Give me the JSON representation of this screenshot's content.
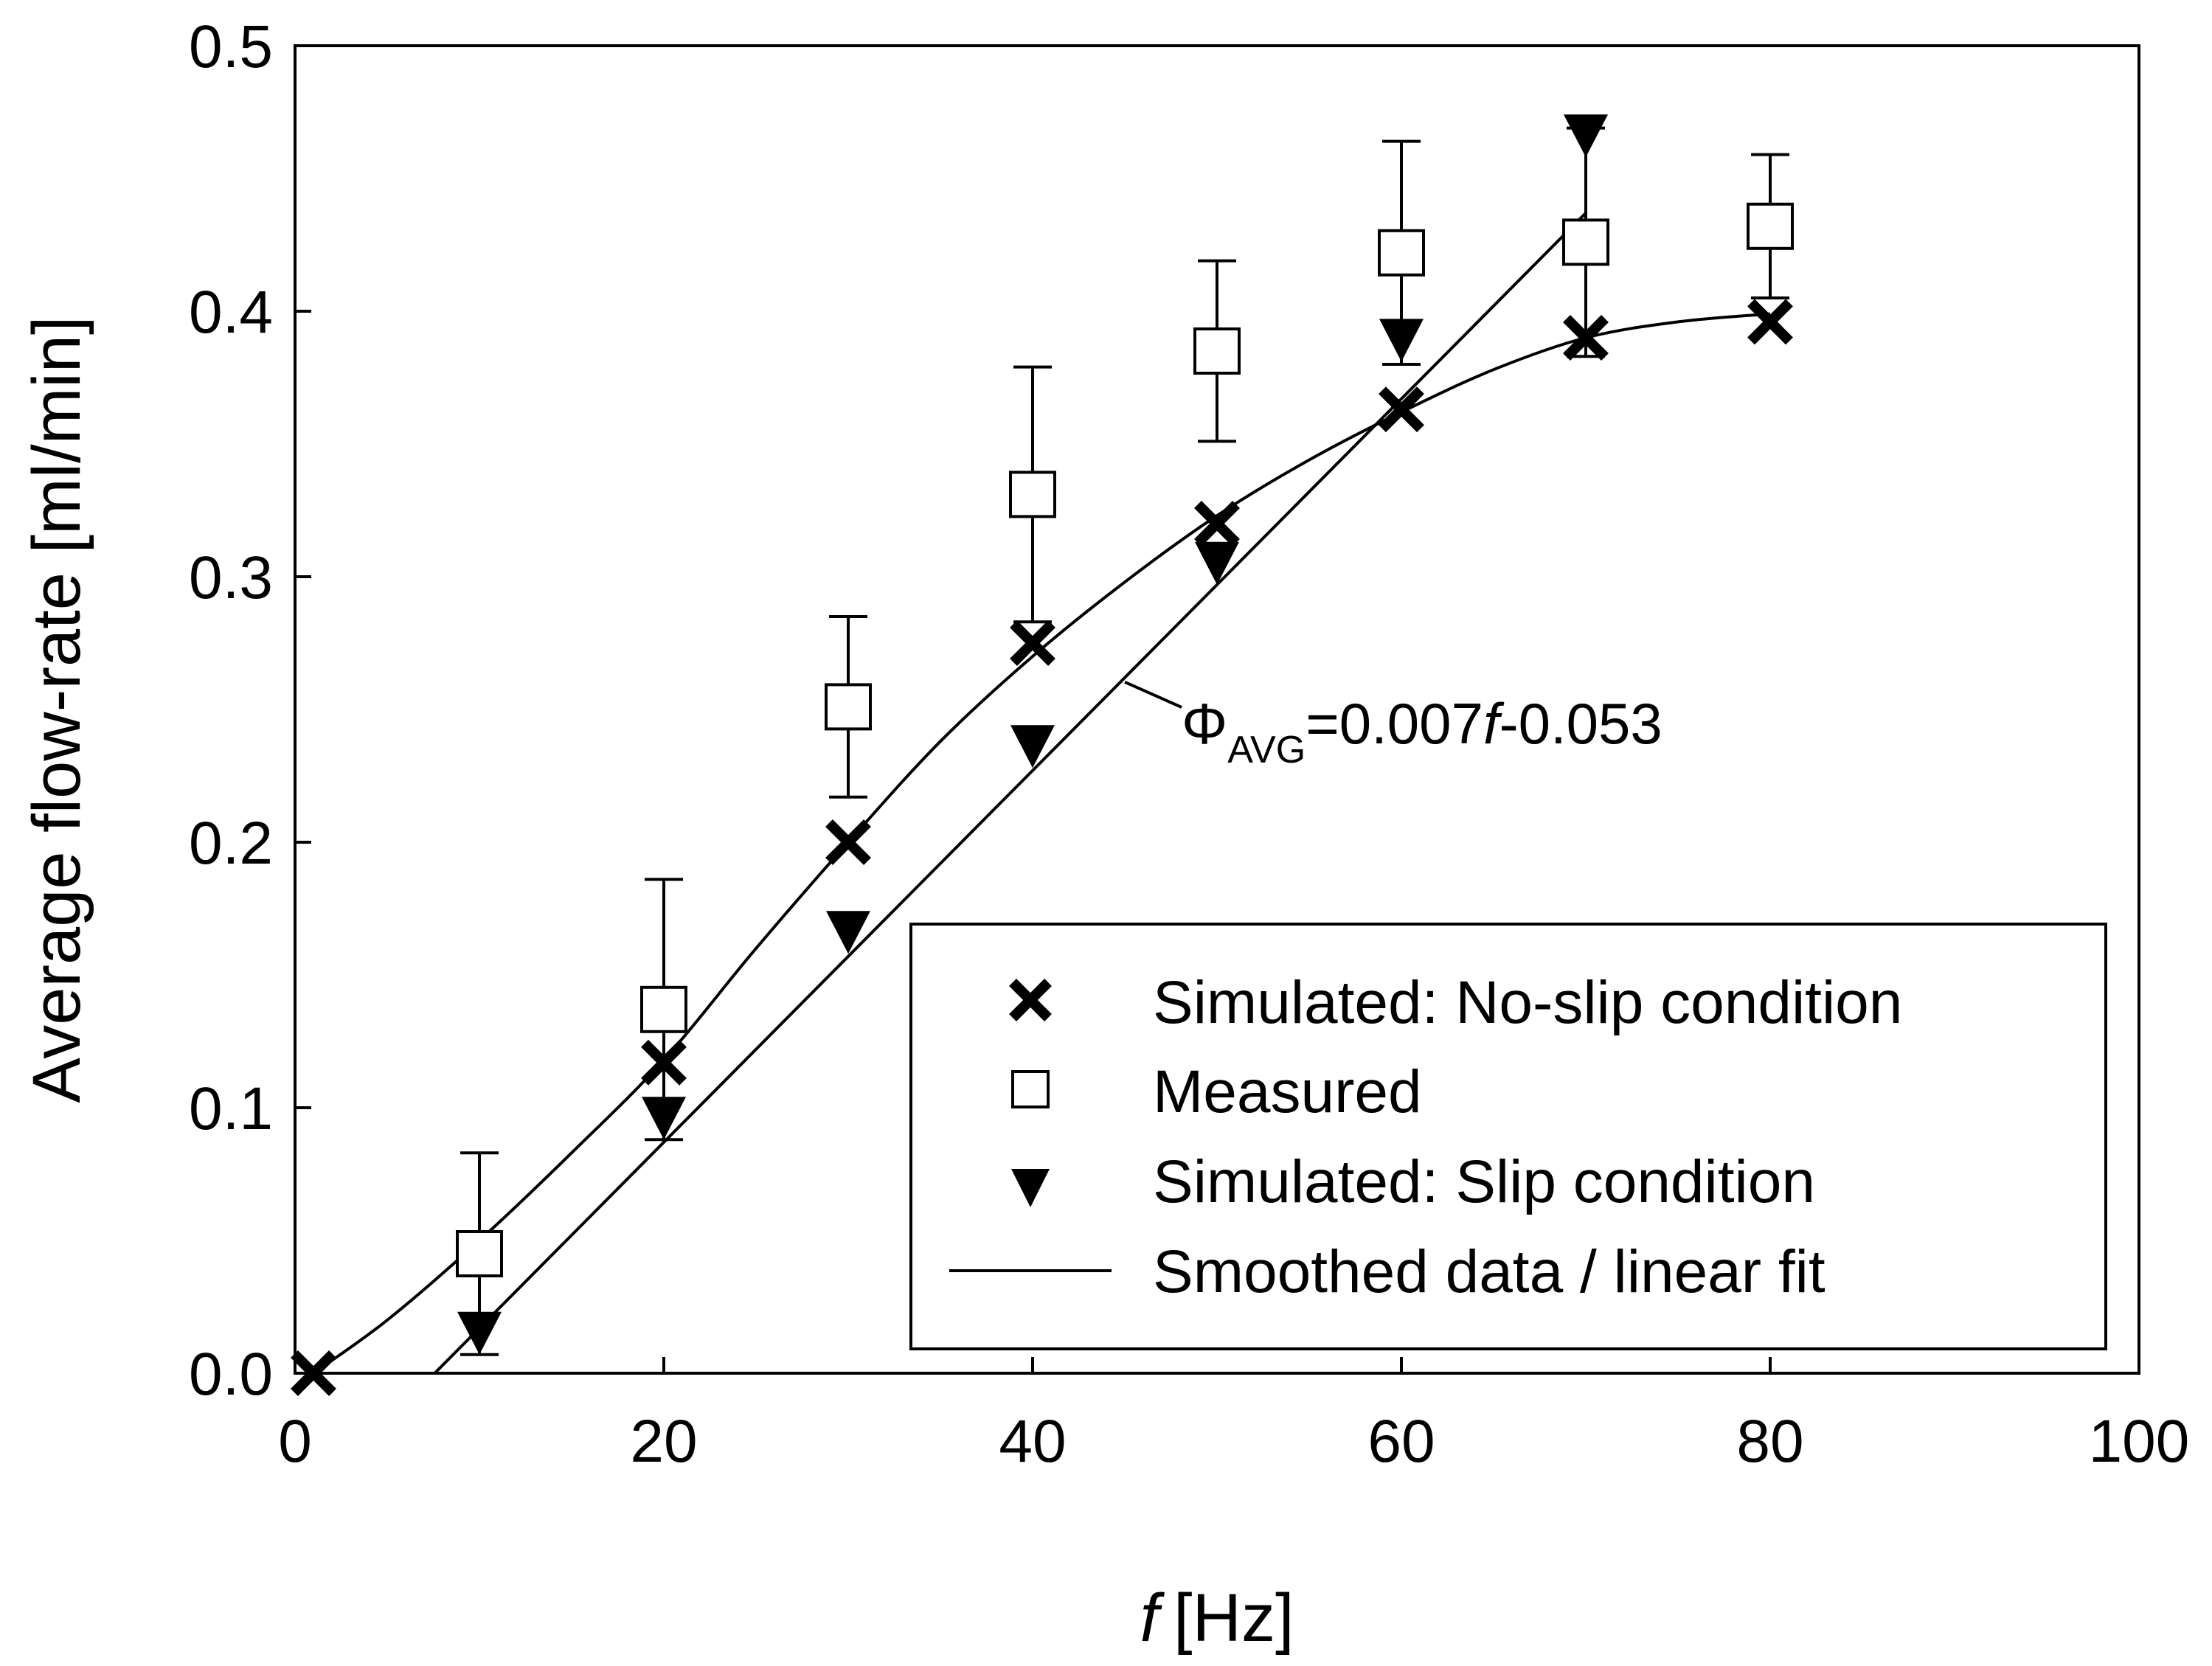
{
  "chart_data": {
    "type": "scatter",
    "xlabel": "[Hz]",
    "xlabel_var": "f",
    "ylabel": "Average flow-rate  [ml/min]",
    "xlim": [
      0,
      100
    ],
    "ylim": [
      0,
      0.5
    ],
    "x_ticks": [
      0,
      20,
      40,
      60,
      80,
      100
    ],
    "x_tick_labels": [
      "0",
      "20",
      "40",
      "60",
      "80",
      "100"
    ],
    "y_ticks": [
      0,
      0.1,
      0.2,
      0.3,
      0.4,
      0.5
    ],
    "y_tick_labels": [
      "0.0",
      "0.1",
      "0.2",
      "0.3",
      "0.4",
      "0.5"
    ],
    "grid": false,
    "legend_position": "bottom-right",
    "series": [
      {
        "name": "Simulated: No-slip condition",
        "marker": "x",
        "x": [
          1,
          20,
          30,
          40,
          50,
          60,
          70,
          80
        ],
        "y": [
          0.0,
          0.117,
          0.2,
          0.275,
          0.32,
          0.363,
          0.39,
          0.396
        ]
      },
      {
        "name": "Measured",
        "marker": "open-square",
        "x": [
          10,
          20,
          30,
          40,
          50,
          60,
          70,
          80
        ],
        "y": [
          0.045,
          0.137,
          0.251,
          0.331,
          0.385,
          0.422,
          0.426,
          0.432
        ],
        "error_plus": [
          0.038,
          0.049,
          0.034,
          0.048,
          0.034,
          0.042,
          0.043,
          0.027
        ],
        "error_minus": [
          0.038,
          0.049,
          0.034,
          0.048,
          0.034,
          0.042,
          0.043,
          0.027
        ]
      },
      {
        "name": "Simulated: Slip condition",
        "marker": "filled-down-triangle",
        "x": [
          10,
          20,
          30,
          40,
          50,
          60,
          70
        ],
        "y": [
          0.017,
          0.098,
          0.168,
          0.238,
          0.307,
          0.391,
          0.468
        ]
      },
      {
        "name": "Smoothed data / linear fit",
        "marker": "line",
        "smoothed": {
          "x": [
            1,
            5,
            10,
            15,
            20,
            25,
            30,
            35,
            40,
            45,
            50,
            55,
            60,
            65,
            70,
            75,
            80
          ],
          "y": [
            0.0,
            0.02,
            0.05,
            0.083,
            0.118,
            0.16,
            0.2,
            0.238,
            0.27,
            0.298,
            0.323,
            0.344,
            0.362,
            0.378,
            0.39,
            0.396,
            0.399
          ]
        },
        "linear_fit": {
          "slope": 0.007,
          "intercept": -0.053,
          "x_range": [
            7.6,
            70
          ]
        }
      }
    ],
    "annotation": {
      "symbol": "Φ",
      "subscript": "AVG",
      "equation_part1": "=0.007",
      "variable": "f",
      "equation_part2": "-0.053",
      "points_to_x": 45
    }
  }
}
